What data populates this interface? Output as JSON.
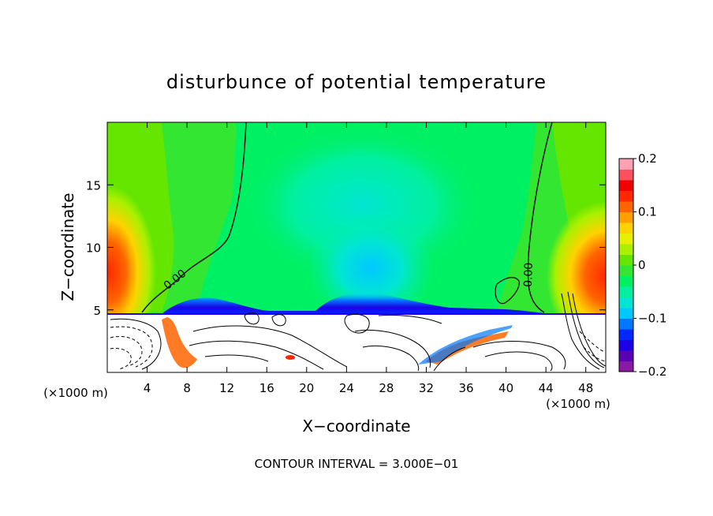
{
  "chart_data": {
    "type": "heatmap",
    "title": "disturbunce of potential temperature",
    "xlabel": "X−coordinate",
    "ylabel": "Z−coordinate",
    "x_unit": "(×1000 m)",
    "x_unit_right": "(×1000 m)",
    "xlim": [
      0,
      50
    ],
    "ylim": [
      0,
      20
    ],
    "x_ticks": [
      4,
      8,
      12,
      16,
      20,
      24,
      28,
      32,
      36,
      40,
      44,
      48
    ],
    "x_tick_labels": [
      "4",
      "8",
      "12",
      "16",
      "20",
      "24",
      "28",
      "32",
      "36",
      "40",
      "44",
      "48"
    ],
    "y_ticks": [
      5,
      10,
      15
    ],
    "y_tick_labels": [
      "5",
      "10",
      "15"
    ],
    "colorbar": {
      "range": [
        -0.2,
        0.2
      ],
      "tick_values": [
        0.2,
        0.1,
        0,
        -0.1,
        -0.2
      ],
      "tick_labels": [
        "0.2",
        "0.1",
        "0",
        "−0.1",
        "−0.2"
      ],
      "colors": [
        "#8b1aa3",
        "#5a00b4",
        "#1e00e6",
        "#0028ff",
        "#0078ff",
        "#00c8ff",
        "#00e6d2",
        "#00f0a0",
        "#00f064",
        "#32e632",
        "#64e600",
        "#aaf000",
        "#e6f000",
        "#ffd200",
        "#ffa000",
        "#ff6400",
        "#ff2800",
        "#f00000",
        "#ff5060",
        "#ffa0b4"
      ]
    },
    "contour_labels": [
      {
        "text": "0.00",
        "x": 7,
        "z": 7.2
      },
      {
        "text": "0.00",
        "x": 42.6,
        "z": 7.8
      }
    ],
    "contour_interval_text": "CONTOUR INTERVAL = 3.000E−01"
  },
  "colors": {
    "background": "#ffffff",
    "field_green": "#32e632",
    "field_cyan": "#00f0a0",
    "boundary_white": "#ffffff"
  }
}
